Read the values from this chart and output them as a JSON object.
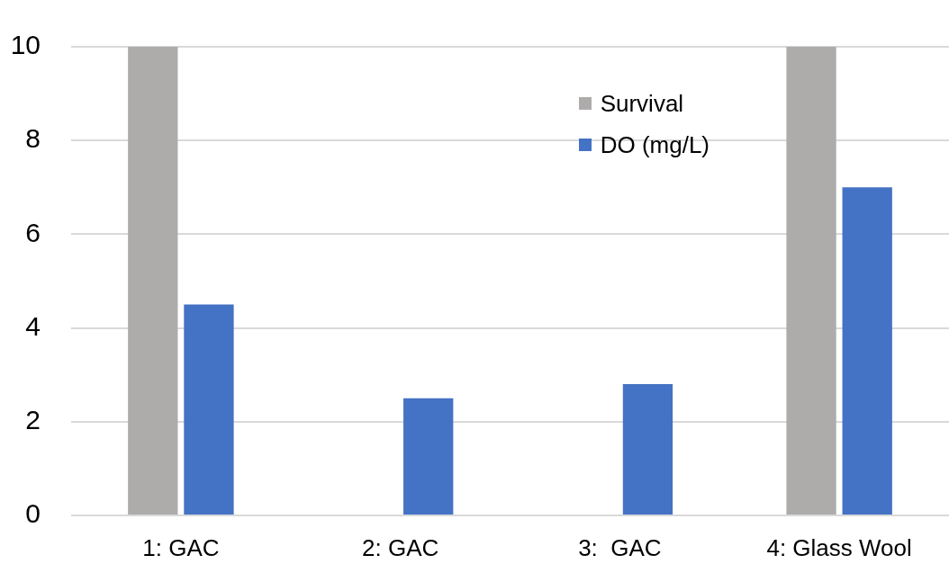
{
  "chart_data": {
    "type": "bar",
    "categories": [
      "1: GAC",
      "2: GAC",
      "3:  GAC",
      "4: Glass Wool"
    ],
    "series": [
      {
        "name": "Survival",
        "color": "#aeabab",
        "values": [
          10,
          0,
          0,
          10
        ]
      },
      {
        "name": "DO (mg/L)",
        "color": "#4472c4",
        "values": [
          4.5,
          2.5,
          2.8,
          7.0
        ]
      }
    ],
    "ylim": [
      0,
      10
    ],
    "yticks": [
      0,
      2,
      4,
      6,
      8,
      10
    ],
    "grid": "y",
    "legend": "top right"
  }
}
